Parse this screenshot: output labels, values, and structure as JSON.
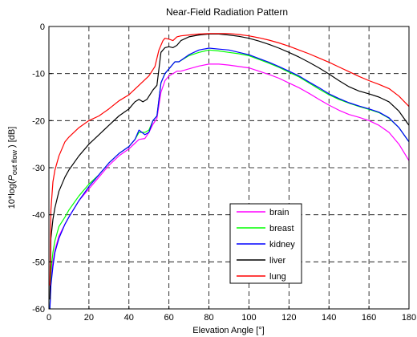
{
  "chart_data": {
    "type": "line",
    "title": "Near-Field Radiation Pattern",
    "xlabel": "Elevation Angle [°]",
    "ylabel": {
      "prefix": "10*log(",
      "var": "P",
      "sub": "out flow",
      "suffix": " ) [dB]"
    },
    "xlim": [
      0,
      180
    ],
    "ylim": [
      -60,
      0
    ],
    "xticks": [
      0,
      20,
      40,
      60,
      80,
      100,
      120,
      140,
      160,
      180
    ],
    "yticks": [
      0,
      -10,
      -20,
      -30,
      -40,
      -50,
      -60
    ],
    "grid": true,
    "grid_style": "dashed",
    "legend_position": "lower-right",
    "series": [
      {
        "name": "brain",
        "color": "#ff00ff",
        "points": [
          [
            0.5,
            -60
          ],
          [
            1,
            -54
          ],
          [
            2,
            -50
          ],
          [
            3,
            -47.5
          ],
          [
            5,
            -44.5
          ],
          [
            8,
            -42
          ],
          [
            10,
            -40.5
          ],
          [
            15,
            -37
          ],
          [
            20,
            -34.5
          ],
          [
            25,
            -32
          ],
          [
            30,
            -29.5
          ],
          [
            35,
            -27.5
          ],
          [
            40,
            -26
          ],
          [
            43,
            -24.8
          ],
          [
            45,
            -24
          ],
          [
            48,
            -23.8
          ],
          [
            50,
            -22.5
          ],
          [
            52,
            -20.8
          ],
          [
            54,
            -19.5
          ],
          [
            56,
            -14
          ],
          [
            58,
            -11.5
          ],
          [
            60,
            -10.5
          ],
          [
            62,
            -10
          ],
          [
            64,
            -9.5
          ],
          [
            66,
            -9.5
          ],
          [
            70,
            -9
          ],
          [
            75,
            -8.4
          ],
          [
            80,
            -8
          ],
          [
            85,
            -8
          ],
          [
            90,
            -8.2
          ],
          [
            95,
            -8.5
          ],
          [
            100,
            -8.8
          ],
          [
            105,
            -9.5
          ],
          [
            110,
            -10.2
          ],
          [
            115,
            -11
          ],
          [
            120,
            -12
          ],
          [
            125,
            -13
          ],
          [
            130,
            -14.2
          ],
          [
            135,
            -15.5
          ],
          [
            140,
            -16.7
          ],
          [
            145,
            -17.8
          ],
          [
            150,
            -18.7
          ],
          [
            155,
            -19.3
          ],
          [
            160,
            -20
          ],
          [
            165,
            -21
          ],
          [
            170,
            -22.5
          ],
          [
            175,
            -25
          ],
          [
            180,
            -28.5
          ]
        ]
      },
      {
        "name": "breast",
        "color": "#00ff00",
        "points": [
          [
            0.5,
            -60
          ],
          [
            1,
            -52
          ],
          [
            2,
            -48
          ],
          [
            3,
            -45.5
          ],
          [
            5,
            -42.5
          ],
          [
            8,
            -40.5
          ],
          [
            10,
            -39
          ],
          [
            15,
            -36
          ],
          [
            20,
            -33.5
          ],
          [
            25,
            -31.5
          ],
          [
            30,
            -29
          ],
          [
            35,
            -27
          ],
          [
            40,
            -25.5
          ],
          [
            43,
            -24
          ],
          [
            45,
            -22.5
          ],
          [
            48,
            -22.5
          ],
          [
            50,
            -22
          ],
          [
            52,
            -20
          ],
          [
            54,
            -19
          ],
          [
            56,
            -12
          ],
          [
            58,
            -10
          ],
          [
            60,
            -9
          ],
          [
            63,
            -7.5
          ],
          [
            65,
            -7.5
          ],
          [
            70,
            -6.2
          ],
          [
            75,
            -5.5
          ],
          [
            80,
            -5
          ],
          [
            85,
            -5.2
          ],
          [
            90,
            -5.5
          ],
          [
            95,
            -5.8
          ],
          [
            100,
            -6.2
          ],
          [
            105,
            -7
          ],
          [
            110,
            -7.8
          ],
          [
            115,
            -8.7
          ],
          [
            120,
            -9.7
          ],
          [
            125,
            -10.7
          ],
          [
            130,
            -12
          ],
          [
            135,
            -13.3
          ],
          [
            140,
            -14.5
          ],
          [
            145,
            -15.5
          ],
          [
            150,
            -16.3
          ],
          [
            155,
            -17
          ],
          [
            160,
            -17.6
          ],
          [
            165,
            -18.3
          ],
          [
            170,
            -19.5
          ],
          [
            175,
            -21.5
          ],
          [
            180,
            -24.5
          ]
        ]
      },
      {
        "name": "kidney",
        "color": "#0000ff",
        "points": [
          [
            0.5,
            -60
          ],
          [
            1,
            -55
          ],
          [
            2,
            -51
          ],
          [
            3,
            -48
          ],
          [
            5,
            -45
          ],
          [
            8,
            -42
          ],
          [
            10,
            -40.5
          ],
          [
            15,
            -37
          ],
          [
            20,
            -34
          ],
          [
            25,
            -31.5
          ],
          [
            30,
            -29
          ],
          [
            35,
            -27
          ],
          [
            40,
            -25.5
          ],
          [
            43,
            -24
          ],
          [
            45,
            -22
          ],
          [
            48,
            -23
          ],
          [
            50,
            -22.5
          ],
          [
            52,
            -20
          ],
          [
            54,
            -19
          ],
          [
            56,
            -12
          ],
          [
            58,
            -10
          ],
          [
            60,
            -9
          ],
          [
            63,
            -7.5
          ],
          [
            65,
            -7.5
          ],
          [
            70,
            -6
          ],
          [
            75,
            -5
          ],
          [
            80,
            -4.6
          ],
          [
            85,
            -4.8
          ],
          [
            90,
            -5
          ],
          [
            95,
            -5.5
          ],
          [
            100,
            -6
          ],
          [
            105,
            -6.8
          ],
          [
            110,
            -7.6
          ],
          [
            115,
            -8.5
          ],
          [
            120,
            -9.5
          ],
          [
            125,
            -10.5
          ],
          [
            130,
            -11.8
          ],
          [
            135,
            -13
          ],
          [
            140,
            -14.3
          ],
          [
            145,
            -15.3
          ],
          [
            150,
            -16.2
          ],
          [
            155,
            -16.9
          ],
          [
            160,
            -17.5
          ],
          [
            165,
            -18.2
          ],
          [
            170,
            -19.4
          ],
          [
            175,
            -21.5
          ],
          [
            180,
            -24.5
          ]
        ]
      },
      {
        "name": "liver",
        "color": "#000000",
        "points": [
          [
            0.5,
            -58
          ],
          [
            1,
            -45
          ],
          [
            2,
            -41
          ],
          [
            3,
            -38.5
          ],
          [
            5,
            -35
          ],
          [
            8,
            -32
          ],
          [
            10,
            -30.5
          ],
          [
            15,
            -27.5
          ],
          [
            20,
            -25
          ],
          [
            25,
            -23
          ],
          [
            30,
            -21
          ],
          [
            35,
            -19
          ],
          [
            40,
            -17.5
          ],
          [
            43,
            -16
          ],
          [
            45,
            -15.5
          ],
          [
            47,
            -16
          ],
          [
            49,
            -15.5
          ],
          [
            52,
            -13.5
          ],
          [
            54,
            -12.5
          ],
          [
            56,
            -5.5
          ],
          [
            58,
            -4.5
          ],
          [
            60,
            -4.3
          ],
          [
            62,
            -4.5
          ],
          [
            64,
            -4
          ],
          [
            66,
            -3
          ],
          [
            70,
            -2.2
          ],
          [
            75,
            -1.8
          ],
          [
            80,
            -1.6
          ],
          [
            85,
            -1.6
          ],
          [
            90,
            -1.8
          ],
          [
            95,
            -2.1
          ],
          [
            100,
            -2.5
          ],
          [
            105,
            -3.1
          ],
          [
            110,
            -3.8
          ],
          [
            115,
            -4.6
          ],
          [
            120,
            -5.5
          ],
          [
            125,
            -6.5
          ],
          [
            130,
            -7.6
          ],
          [
            135,
            -8.8
          ],
          [
            140,
            -10.1
          ],
          [
            145,
            -11.5
          ],
          [
            150,
            -12.8
          ],
          [
            155,
            -13.7
          ],
          [
            160,
            -14.3
          ],
          [
            165,
            -15
          ],
          [
            170,
            -16
          ],
          [
            175,
            -18
          ],
          [
            180,
            -21
          ]
        ]
      },
      {
        "name": "lung",
        "color": "#ff0000",
        "points": [
          [
            0.5,
            -55
          ],
          [
            1,
            -39
          ],
          [
            2,
            -33
          ],
          [
            3,
            -30.5
          ],
          [
            5,
            -27.5
          ],
          [
            8,
            -24.5
          ],
          [
            10,
            -23.5
          ],
          [
            15,
            -21.5
          ],
          [
            20,
            -20
          ],
          [
            25,
            -19
          ],
          [
            30,
            -17.5
          ],
          [
            35,
            -15.8
          ],
          [
            40,
            -14.5
          ],
          [
            45,
            -12.5
          ],
          [
            50,
            -10.5
          ],
          [
            53,
            -8.5
          ],
          [
            55,
            -5
          ],
          [
            57,
            -3
          ],
          [
            58,
            -2.5
          ],
          [
            60,
            -2.7
          ],
          [
            62,
            -3
          ],
          [
            64,
            -2.2
          ],
          [
            66,
            -2
          ],
          [
            70,
            -1.8
          ],
          [
            75,
            -1.6
          ],
          [
            80,
            -1.5
          ],
          [
            85,
            -1.5
          ],
          [
            90,
            -1.5
          ],
          [
            95,
            -1.7
          ],
          [
            100,
            -2
          ],
          [
            105,
            -2.4
          ],
          [
            110,
            -2.9
          ],
          [
            115,
            -3.5
          ],
          [
            120,
            -4.2
          ],
          [
            125,
            -5
          ],
          [
            130,
            -5.8
          ],
          [
            135,
            -6.7
          ],
          [
            140,
            -7.6
          ],
          [
            145,
            -8.6
          ],
          [
            150,
            -9.6
          ],
          [
            155,
            -10.6
          ],
          [
            160,
            -11.5
          ],
          [
            165,
            -12.3
          ],
          [
            170,
            -13.2
          ],
          [
            175,
            -14.8
          ],
          [
            180,
            -17
          ]
        ]
      }
    ]
  }
}
